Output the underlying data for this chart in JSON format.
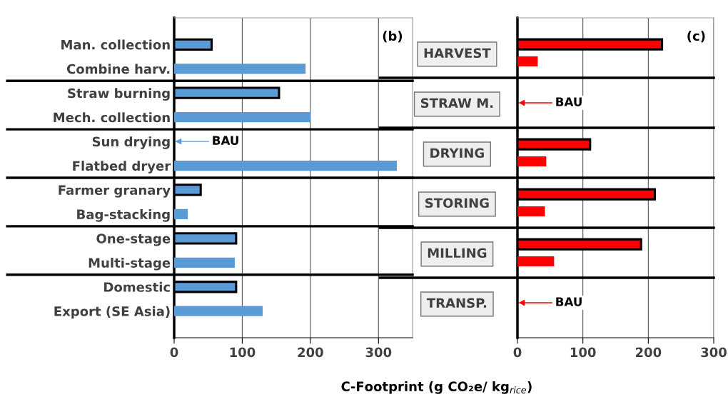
{
  "chart_data": [
    {
      "type": "bar",
      "orientation": "horizontal",
      "title": "(b)",
      "xlabel": "C-Footprint (g CO₂e/ kg$_{rice}$)",
      "categories": [
        "Man. collection",
        "Combine harv.",
        "Straw burning",
        "Mech. collection",
        "Sun drying",
        "Flatbed dryer",
        "Farmer granary",
        "Bag-stacking",
        "One-stage",
        "Multi-stage",
        "Domestic",
        "Export (SE Asia)"
      ],
      "series": [
        {
          "color": "#5b9bd5",
          "values": [
            55,
            null,
            154,
            null,
            null,
            null,
            39,
            null,
            91,
            null,
            91,
            null
          ]
        },
        {
          "color": "#5b9bd5",
          "values": [
            null,
            193,
            null,
            200,
            null,
            327,
            null,
            20,
            null,
            89,
            null,
            130
          ]
        }
      ],
      "xlim": [
        0,
        350
      ],
      "xticks": [
        0,
        100,
        200,
        300
      ],
      "grid": "x",
      "annotations": [
        "BAU"
      ]
    },
    {
      "type": "bar",
      "orientation": "horizontal",
      "title": "(c)",
      "categories": [
        "HARVEST",
        "STRAW M.",
        "DRYING",
        "STORING",
        "MILLING",
        "TRANSP."
      ],
      "series": [
        {
          "color": "#ff0000",
          "values": [
            221,
            null,
            111,
            210,
            189,
            null
          ]
        },
        {
          "color": "#ff0000",
          "values": [
            31,
            null,
            44,
            42,
            56,
            null
          ]
        }
      ],
      "xlim": [
        0,
        300
      ],
      "xticks": [
        0,
        100,
        200,
        300
      ],
      "grid": "x",
      "annotations": [
        "BAU",
        "BAU"
      ]
    }
  ]
}
